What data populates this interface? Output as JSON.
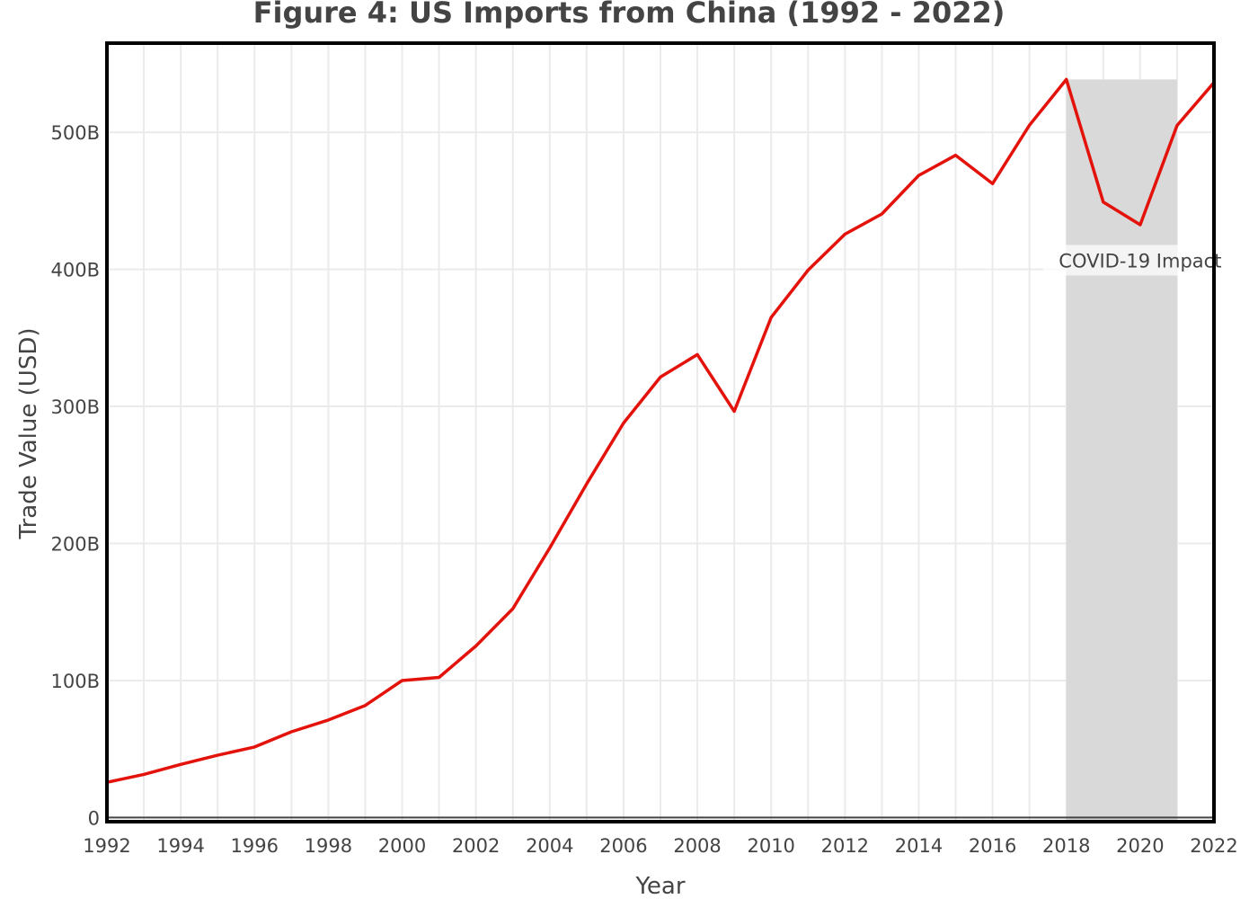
{
  "chart_data": {
    "type": "line",
    "title": "Figure 4: US Imports from China (1992 - 2022)",
    "xlabel": "Year",
    "ylabel": "Trade Value (USD)",
    "xlim": [
      1992,
      2022
    ],
    "ylim": [
      -3,
      565
    ],
    "x_ticks": [
      1992,
      1994,
      1996,
      1998,
      2000,
      2002,
      2004,
      2006,
      2008,
      2010,
      2012,
      2014,
      2016,
      2018,
      2020,
      2022
    ],
    "y_ticks": [
      0,
      100,
      200,
      300,
      400,
      500
    ],
    "y_tick_labels": [
      "0",
      "100B",
      "200B",
      "300B",
      "400B",
      "500B"
    ],
    "y_unit": "billion USD",
    "grid": true,
    "line_color": "#e3120b",
    "series": [
      {
        "x": [
          1992,
          1993,
          1994,
          1995,
          1996,
          1997,
          1998,
          1999,
          2000,
          2001,
          2002,
          2003,
          2004,
          2005,
          2006,
          2007,
          2008,
          2009,
          2010,
          2011,
          2012,
          2013,
          2014,
          2015,
          2016,
          2017,
          2018,
          2019,
          2020,
          2021,
          2022
        ],
        "values": [
          25.7,
          31.5,
          38.8,
          45.5,
          51.5,
          62.6,
          71.2,
          81.8,
          100.0,
          102.3,
          125.2,
          152.4,
          196.7,
          243.5,
          287.8,
          321.4,
          337.8,
          296.4,
          364.9,
          399.4,
          425.6,
          440.4,
          468.5,
          483.2,
          462.5,
          505.2,
          538.5,
          449.1,
          432.5,
          504.9,
          536.3
        ]
      }
    ],
    "annotations": [
      {
        "type": "shaded_region",
        "x_start": 2018,
        "x_end": 2021,
        "y_top": 538.5,
        "color": "#d9d9d9",
        "label": "COVID-19 Impact",
        "label_x": 2020,
        "label_y": 406
      }
    ]
  }
}
